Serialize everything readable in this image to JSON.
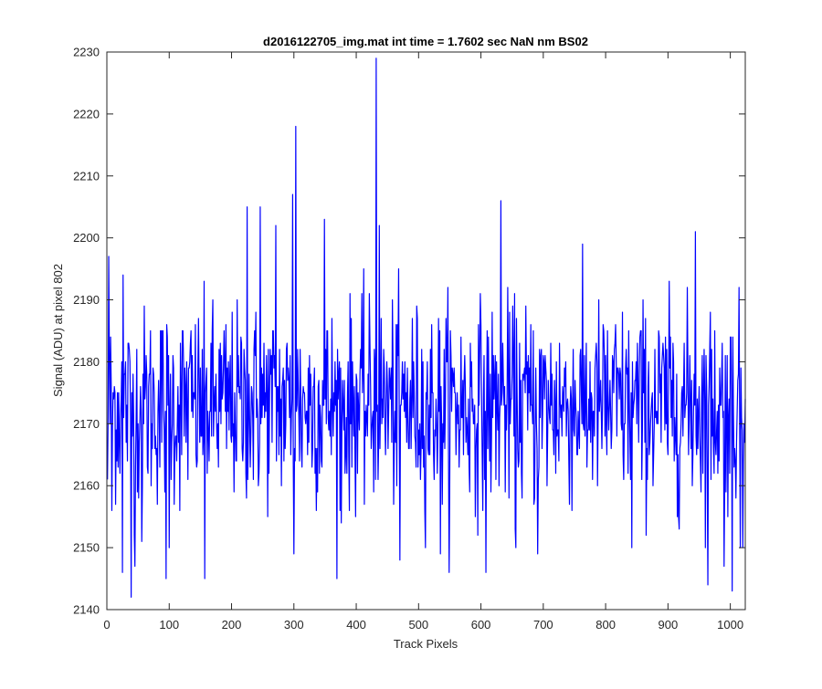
{
  "chart_data": {
    "type": "line",
    "title": "d2016122705_img.mat int time = 1.7602 sec  NaN nm BS02",
    "xlabel": "Track Pixels",
    "ylabel": "Signal (ADU) at pixel 802",
    "xlim": [
      0,
      1024
    ],
    "ylim": [
      2140,
      2230
    ],
    "xticks": [
      0,
      100,
      200,
      300,
      400,
      500,
      600,
      700,
      800,
      900,
      1000
    ],
    "yticks": [
      2140,
      2150,
      2160,
      2170,
      2180,
      2190,
      2200,
      2210,
      2220,
      2230
    ],
    "grid": false,
    "legend": "none",
    "series": [
      {
        "color": "#0000ff",
        "x_start": 1,
        "x_step": 1,
        "n_points": 1024,
        "mean": 2173,
        "noise_std": 8,
        "notable_points": [
          {
            "x": 1,
            "y": 2161
          },
          {
            "x": 3,
            "y": 2197
          },
          {
            "x": 8,
            "y": 2156
          },
          {
            "x": 25,
            "y": 2146
          },
          {
            "x": 26,
            "y": 2194
          },
          {
            "x": 39,
            "y": 2142
          },
          {
            "x": 45,
            "y": 2147
          },
          {
            "x": 56,
            "y": 2151
          },
          {
            "x": 95,
            "y": 2145
          },
          {
            "x": 100,
            "y": 2150
          },
          {
            "x": 157,
            "y": 2145
          },
          {
            "x": 225,
            "y": 2205
          },
          {
            "x": 246,
            "y": 2205
          },
          {
            "x": 271,
            "y": 2202
          },
          {
            "x": 298,
            "y": 2207
          },
          {
            "x": 300,
            "y": 2149
          },
          {
            "x": 303,
            "y": 2218
          },
          {
            "x": 349,
            "y": 2203
          },
          {
            "x": 376,
            "y": 2154
          },
          {
            "x": 432,
            "y": 2229
          },
          {
            "x": 437,
            "y": 2202
          },
          {
            "x": 470,
            "y": 2148
          },
          {
            "x": 535,
            "y": 2149
          },
          {
            "x": 608,
            "y": 2146
          },
          {
            "x": 632,
            "y": 2206
          },
          {
            "x": 656,
            "y": 2150
          },
          {
            "x": 691,
            "y": 2149
          },
          {
            "x": 842,
            "y": 2150
          },
          {
            "x": 944,
            "y": 2201
          },
          {
            "x": 964,
            "y": 2144
          },
          {
            "x": 990,
            "y": 2147
          },
          {
            "x": 1003,
            "y": 2143
          },
          {
            "x": 1016,
            "y": 2150
          },
          {
            "x": 1020,
            "y": 2150
          }
        ]
      }
    ]
  }
}
